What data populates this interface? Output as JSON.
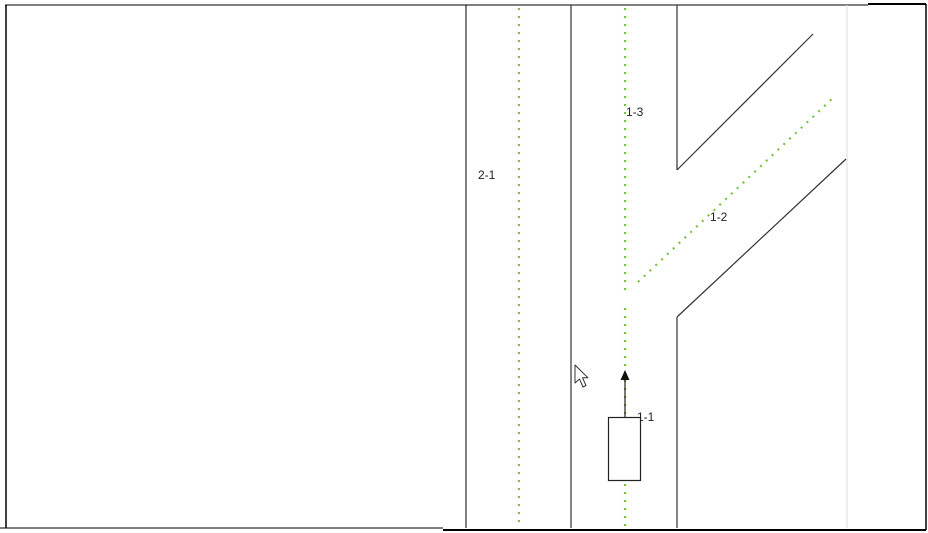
{
  "scene": {
    "lanes": [
      {
        "id": "2-1",
        "label": "2-1"
      },
      {
        "id": "1-3",
        "label": "1-3"
      },
      {
        "id": "1-2",
        "label": "1-2"
      },
      {
        "id": "1-1",
        "label": "1-1"
      }
    ],
    "vehicle": {
      "heading": "up"
    },
    "cursor": {
      "icon": "pointer-cursor-icon"
    }
  },
  "colors": {
    "lane_centerline": "#7ac142",
    "road_edge": "#333333",
    "frame": "#000000",
    "panel_divider": "#dddddd",
    "background": "#ffffff"
  }
}
